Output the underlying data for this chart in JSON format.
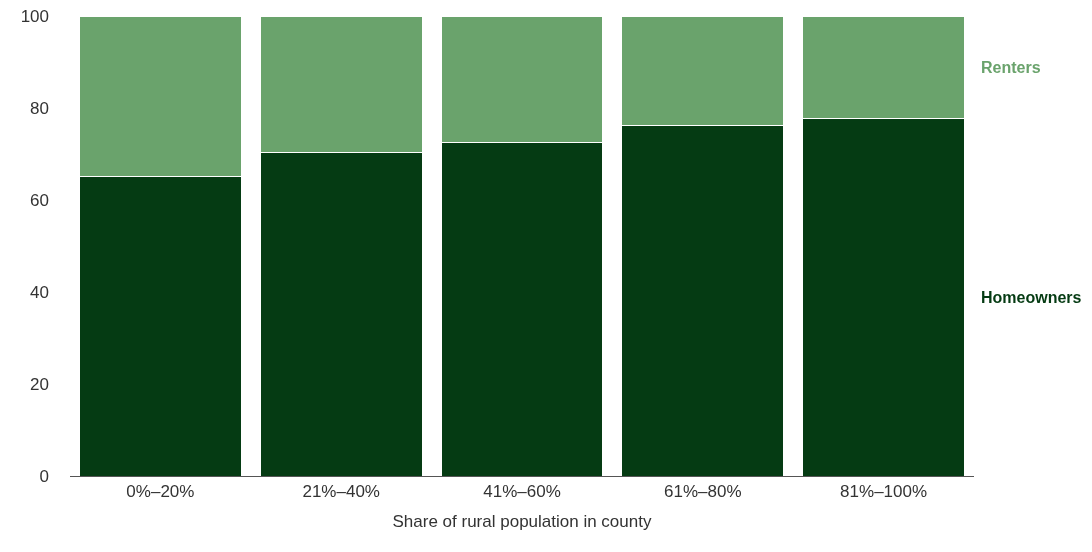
{
  "chart_data": {
    "type": "bar",
    "stacked": true,
    "xlabel": "Share of rural population in county",
    "categories": [
      "0%–20%",
      "21%–40%",
      "41%–60%",
      "61%–80%",
      "81%–100%"
    ],
    "series": [
      {
        "name": "Homeowners",
        "color": "#053b13",
        "values": [
          65.2,
          70.4,
          72.6,
          76.1,
          77.8
        ]
      },
      {
        "name": "Renters",
        "color": "#6aa36c",
        "values": [
          34.8,
          29.6,
          27.4,
          23.9,
          22.2
        ]
      }
    ],
    "ylim": [
      0,
      100
    ],
    "yticks": [
      0,
      20,
      40,
      60,
      80,
      100
    ],
    "grid": false,
    "legend": false
  }
}
